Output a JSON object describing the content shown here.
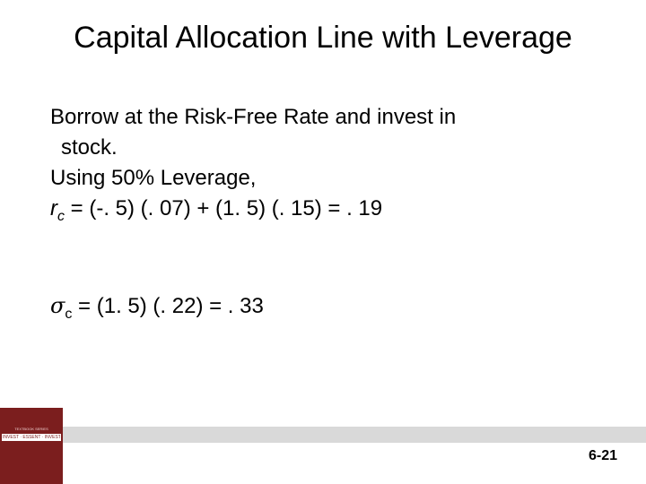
{
  "slide": {
    "title": "Capital Allocation Line with Leverage",
    "lines": [
      "Borrow at the Risk-Free Rate and invest in",
      "stock.",
      "Using 50% Leverage,"
    ],
    "rc": {
      "r": "r",
      "sub": "c",
      "expr": " = (-. 5) (. 07) + (1. 5) (. 15) = . 19"
    },
    "sigma": {
      "symbol": "σ",
      "sub": "c",
      "expr": " = (1. 5) (. 22) = . 33"
    },
    "page_number": "6-21",
    "logo": {
      "top_text": "TEXTBOOK SERIES",
      "text": "INVEST · ESSENT · INVESTMENTS"
    }
  }
}
